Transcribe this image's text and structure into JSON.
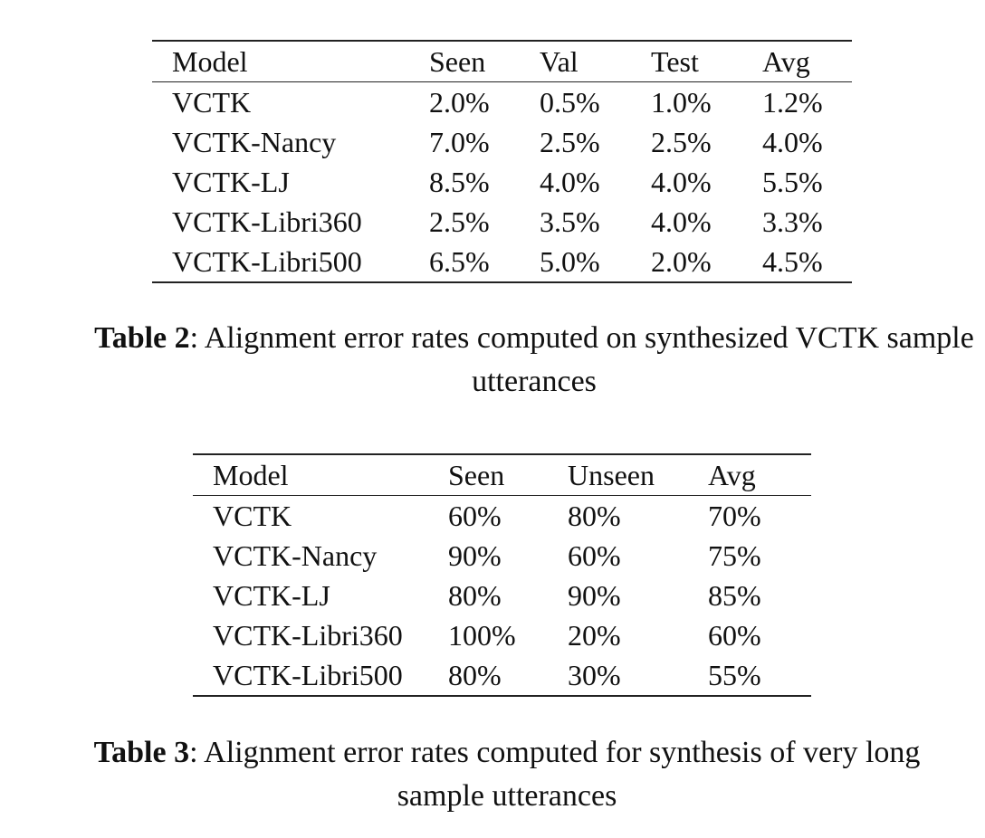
{
  "table2": {
    "headers": [
      "Model",
      "Seen",
      "Val",
      "Test",
      "Avg"
    ],
    "rows": [
      [
        "VCTK",
        "2.0%",
        "0.5%",
        "1.0%",
        "1.2%"
      ],
      [
        "VCTK-Nancy",
        "7.0%",
        "2.5%",
        "2.5%",
        "4.0%"
      ],
      [
        "VCTK-LJ",
        "8.5%",
        "4.0%",
        "4.0%",
        "5.5%"
      ],
      [
        "VCTK-Libri360",
        "2.5%",
        "3.5%",
        "4.0%",
        "3.3%"
      ],
      [
        "VCTK-Libri500",
        "6.5%",
        "5.0%",
        "2.0%",
        "4.5%"
      ]
    ],
    "caption_label": "Table 2",
    "caption_text": ": Alignment error rates computed on synthesized VCTK sample utterances"
  },
  "table3": {
    "headers": [
      "Model",
      "Seen",
      "Unseen",
      "Avg"
    ],
    "rows": [
      [
        "VCTK",
        "60%",
        "80%",
        "70%"
      ],
      [
        "VCTK-Nancy",
        "90%",
        "60%",
        "75%"
      ],
      [
        "VCTK-LJ",
        "80%",
        "90%",
        "85%"
      ],
      [
        "VCTK-Libri360",
        "100%",
        "20%",
        "60%"
      ],
      [
        "VCTK-Libri500",
        "80%",
        "30%",
        "55%"
      ]
    ],
    "caption_label": "Table 3",
    "caption_text": ": Alignment error rates computed for synthesis of very long sample utterances"
  }
}
